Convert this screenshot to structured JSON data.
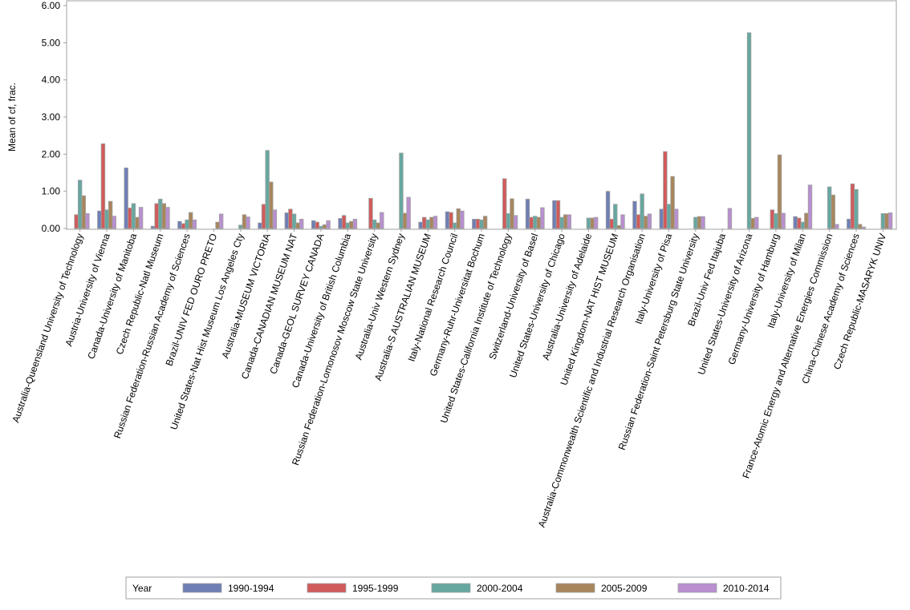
{
  "chart_data": {
    "type": "bar",
    "title": "",
    "xlabel": "",
    "ylabel": "Mean of cf, frac.",
    "ylim": [
      0,
      6
    ],
    "yticks": [
      "0.00",
      "1.00",
      "2.00",
      "3.00",
      "4.00",
      "5.00",
      "6.00"
    ],
    "grid": false,
    "legend": {
      "title": "Year",
      "placement": "bottom"
    },
    "categories": [
      "Australia-Queensland University of Technology",
      "Austria-University of Vienna",
      "Canada-University of Manitoba",
      "Czech Republic-Natl Museum",
      "Russian Federation-Russian Academy of Sciences",
      "Brazil-UNIV FED OURO PRETO",
      "United States-Nat Hist Museum Los Angeles Cty",
      "Australia-MUSEUM VICTORIA",
      "Canada-CANADIAN MUSEUM NAT",
      "Canada-GEOL SURVEY CANADA",
      "Canada-University of British Columbia",
      "Russian Federation-Lomonosov Moscow State University",
      "Australia-Univ Western Sydney",
      "Australia-S AUSTRALIAN MUSEUM",
      "Italy-National Research Council",
      "Germany-Ruhr-Universitat Bochum",
      "United States-California Institute of Technology",
      "Switzerland-University of Basel",
      "United States-University of Chicago",
      "Australia-University of Adelaide",
      "United Kingdom-NAT HIST MUSEUM",
      "Australia-Commonwealth Scientific and Industrial Research Organisation",
      "Italy-University of Pisa",
      "Russian Federation-Saint Petersburg State University",
      "Brazil-Univ Fed Itajuba",
      "United States-University of Arizona",
      "Germany-University of Hamburg",
      "Italy-University of Milan",
      "France-Atomic Energy and Alternative Energies Commission",
      "China-Chinese Academy of Sciences",
      "Czech Republic-MASARYK UNIV"
    ],
    "series": [
      {
        "name": "1990-1994",
        "color": "#6f7fb6",
        "values": [
          0,
          0.47,
          1.63,
          0.06,
          0.19,
          0,
          0,
          0.15,
          0.42,
          0.21,
          0.27,
          0,
          0,
          0.17,
          0.45,
          0.25,
          0,
          0.79,
          0.75,
          0,
          1.0,
          0.73,
          0.52,
          0,
          0,
          0,
          0,
          0.32,
          0,
          0.25,
          0
        ]
      },
      {
        "name": "1995-1999",
        "color": "#d15b5b",
        "values": [
          0.37,
          2.28,
          0.55,
          0.67,
          0.13,
          0,
          0,
          0.65,
          0.52,
          0.17,
          0.35,
          0.81,
          0,
          0.3,
          0.43,
          0.25,
          1.34,
          0.3,
          0.75,
          0,
          0.25,
          0.37,
          2.07,
          0,
          0,
          0,
          0.5,
          0.28,
          0,
          1.2,
          0
        ]
      },
      {
        "name": "2000-2004",
        "color": "#66a8a0",
        "values": [
          1.3,
          0.5,
          0.67,
          0.79,
          0.23,
          0,
          0.09,
          2.1,
          0.39,
          0.06,
          0.15,
          0.23,
          2.03,
          0.23,
          0.15,
          0.23,
          0.4,
          0.33,
          0.3,
          0.28,
          0.65,
          0.93,
          0.65,
          0.3,
          0,
          5.27,
          0.4,
          0.17,
          1.12,
          1.05,
          0.4
        ]
      },
      {
        "name": "2005-2009",
        "color": "#a8865d",
        "values": [
          0.88,
          0.73,
          0.3,
          0.67,
          0.43,
          0.17,
          0.37,
          1.25,
          0.15,
          0.1,
          0.19,
          0.15,
          0.41,
          0.3,
          0.53,
          0.33,
          0.8,
          0.3,
          0.37,
          0.28,
          0.08,
          0.33,
          1.4,
          0.32,
          0,
          0.27,
          1.98,
          0.41,
          0.9,
          0.11,
          0.4
        ]
      },
      {
        "name": "2010-2014",
        "color": "#b98fd0",
        "values": [
          0.4,
          0.33,
          0.57,
          0.57,
          0.23,
          0.39,
          0.31,
          0.5,
          0.25,
          0.21,
          0.25,
          0.43,
          0.84,
          0.33,
          0.47,
          0,
          0.35,
          0.56,
          0.37,
          0.3,
          0.37,
          0.39,
          0.52,
          0.32,
          0.54,
          0.3,
          0.41,
          1.17,
          0.11,
          0.04,
          0.42
        ]
      }
    ]
  }
}
